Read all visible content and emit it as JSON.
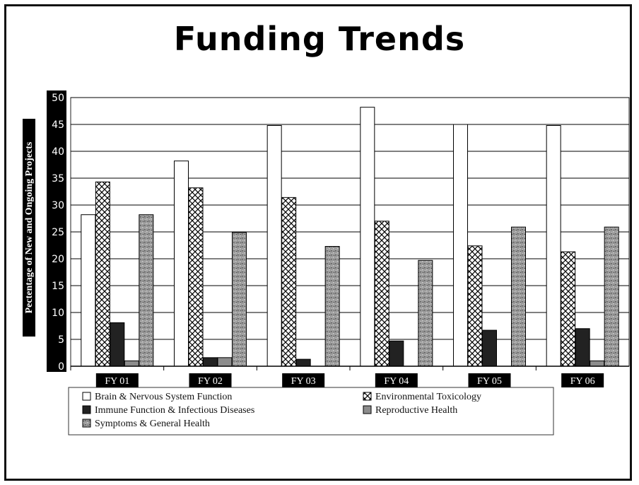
{
  "chart_data": {
    "type": "bar",
    "title": "Funding Trends",
    "xlabel": "",
    "ylabel": "Pectentage of New and Ongoing Projects",
    "ylim": [
      0,
      50
    ],
    "yticks": [
      0,
      5,
      10,
      15,
      20,
      25,
      30,
      35,
      40,
      45,
      50
    ],
    "grid": true,
    "legend_position": "bottom",
    "categories": [
      "FY 01",
      "FY 02",
      "FY 03",
      "FY 04",
      "FY 05",
      "FY 06"
    ],
    "series": [
      {
        "name": "Brain & Nervous System Function",
        "values": [
          28.2,
          38.2,
          44.8,
          48.2,
          45.0,
          44.8
        ],
        "pattern": "white"
      },
      {
        "name": "Environmental Toxicology",
        "values": [
          34.3,
          33.2,
          31.4,
          27.0,
          22.4,
          21.3
        ],
        "pattern": "crosshatch"
      },
      {
        "name": "Immune Function & Infectious Diseases",
        "values": [
          8.1,
          1.6,
          1.3,
          4.7,
          6.7,
          7.0
        ],
        "pattern": "black"
      },
      {
        "name": "Reproductive Health",
        "values": [
          1.0,
          1.6,
          0,
          0,
          0,
          1.0
        ],
        "pattern": "gray"
      },
      {
        "name": "Symptoms & General Health",
        "values": [
          28.2,
          24.9,
          22.3,
          19.7,
          25.9,
          25.9
        ],
        "pattern": "speckle"
      }
    ]
  }
}
